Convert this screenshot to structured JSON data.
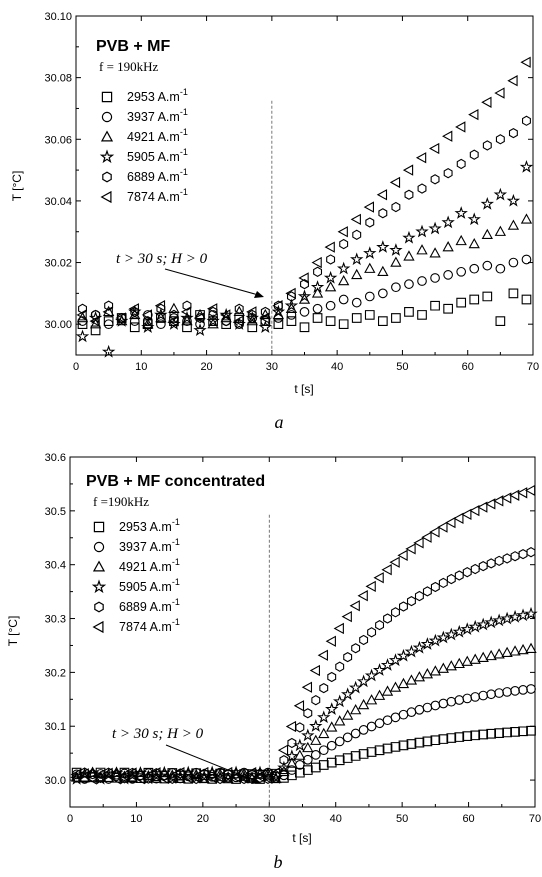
{
  "chart_data": [
    {
      "type": "scatter",
      "panel": "a",
      "title": "PVB + MF",
      "frequency": "f = 190kHz",
      "xlabel": "t [s]",
      "ylabel": "T [°C]",
      "xlim": [
        0,
        70
      ],
      "ylim": [
        29.99,
        30.1
      ],
      "xticks": [
        0,
        10,
        20,
        30,
        40,
        50,
        60,
        70
      ],
      "yticks": [
        30.0,
        30.02,
        30.04,
        30.06,
        30.08,
        30.1
      ],
      "ytick_labels": [
        "30.00",
        "30.02",
        "30.04",
        "30.06",
        "30.08",
        "30.10"
      ],
      "grid": false,
      "legend_position": "top-left",
      "marker_line": 30,
      "annotation": "t > 30 s; H > 0",
      "caption": "a",
      "series": [
        {
          "name": "2953 A.m",
          "marker": "square",
          "x": [
            1,
            3,
            5,
            7,
            9,
            11,
            13,
            15,
            17,
            19,
            21,
            23,
            25,
            27,
            29,
            31,
            33,
            35,
            37,
            39,
            41,
            43,
            45,
            47,
            49,
            51,
            53,
            55,
            57,
            59,
            61,
            63,
            65,
            67,
            69
          ],
          "y": [
            30.0,
            29.998,
            30.001,
            30.002,
            29.999,
            30.0,
            30.002,
            30.001,
            29.999,
            30.003,
            30.001,
            30.0,
            30.002,
            29.999,
            30.001,
            30.0,
            30.001,
            29.999,
            30.002,
            30.001,
            30.0,
            30.002,
            30.003,
            30.001,
            30.002,
            30.004,
            30.003,
            30.006,
            30.005,
            30.007,
            30.008,
            30.009,
            30.001,
            30.01,
            30.008
          ]
        },
        {
          "name": "3937 A.m",
          "marker": "circle",
          "x": [
            1,
            3,
            5,
            7,
            9,
            11,
            13,
            15,
            17,
            19,
            21,
            23,
            25,
            27,
            29,
            31,
            33,
            35,
            37,
            39,
            41,
            43,
            45,
            47,
            49,
            51,
            53,
            55,
            57,
            59,
            61,
            63,
            65,
            67,
            69
          ],
          "y": [
            30.001,
            30.003,
            30.0,
            30.002,
            30.001,
            30.003,
            30.0,
            30.002,
            30.001,
            30.0,
            30.003,
            30.001,
            30.0,
            30.002,
            30.001,
            30.002,
            30.003,
            30.004,
            30.005,
            30.006,
            30.008,
            30.007,
            30.009,
            30.01,
            30.012,
            30.013,
            30.014,
            30.015,
            30.016,
            30.017,
            30.018,
            30.019,
            30.018,
            30.02,
            30.021
          ]
        },
        {
          "name": "4921 A.m",
          "marker": "triangle-up",
          "x": [
            1,
            3,
            5,
            7,
            9,
            11,
            13,
            15,
            17,
            19,
            21,
            23,
            25,
            27,
            29,
            31,
            33,
            35,
            37,
            39,
            41,
            43,
            45,
            47,
            49,
            51,
            53,
            55,
            57,
            59,
            61,
            63,
            65,
            67,
            69
          ],
          "y": [
            30.002,
            30.0,
            30.004,
            30.001,
            30.003,
            30.0,
            30.002,
            30.005,
            30.001,
            30.003,
            30.0,
            30.002,
            30.004,
            30.001,
            30.003,
            30.003,
            30.005,
            30.008,
            30.01,
            30.012,
            30.014,
            30.016,
            30.018,
            30.017,
            30.02,
            30.022,
            30.024,
            30.023,
            30.025,
            30.027,
            30.026,
            30.029,
            30.03,
            30.032,
            30.034
          ]
        },
        {
          "name": "5905 A.m",
          "marker": "star",
          "x": [
            1,
            3,
            5,
            7,
            9,
            11,
            13,
            15,
            17,
            19,
            21,
            23,
            25,
            27,
            29,
            31,
            33,
            35,
            37,
            39,
            41,
            43,
            45,
            47,
            49,
            51,
            53,
            55,
            57,
            59,
            61,
            63,
            65,
            67,
            69
          ],
          "y": [
            29.996,
            30.002,
            29.991,
            30.001,
            30.004,
            29.999,
            30.003,
            30.0,
            30.002,
            29.998,
            30.001,
            30.003,
            30.0,
            30.002,
            29.999,
            30.004,
            30.006,
            30.009,
            30.012,
            30.015,
            30.018,
            30.021,
            30.023,
            30.025,
            30.024,
            30.028,
            30.03,
            30.031,
            30.033,
            30.036,
            30.034,
            30.039,
            30.042,
            30.04,
            30.051
          ]
        },
        {
          "name": "6889 A.m",
          "marker": "hexagon",
          "x": [
            1,
            3,
            5,
            7,
            9,
            11,
            13,
            15,
            17,
            19,
            21,
            23,
            25,
            27,
            29,
            31,
            33,
            35,
            37,
            39,
            41,
            43,
            45,
            47,
            49,
            51,
            53,
            55,
            57,
            59,
            61,
            63,
            65,
            67,
            69
          ],
          "y": [
            30.005,
            30.003,
            30.006,
            30.002,
            30.004,
            30.001,
            30.005,
            30.003,
            30.006,
            30.002,
            30.004,
            30.001,
            30.005,
            30.003,
            30.004,
            30.006,
            30.009,
            30.013,
            30.017,
            30.021,
            30.026,
            30.029,
            30.033,
            30.036,
            30.038,
            30.042,
            30.044,
            30.047,
            30.049,
            30.052,
            30.055,
            30.058,
            30.06,
            30.062,
            30.066
          ]
        },
        {
          "name": "7874 A.m",
          "marker": "triangle-left",
          "x": [
            1,
            3,
            5,
            7,
            9,
            11,
            13,
            15,
            17,
            19,
            21,
            23,
            25,
            27,
            29,
            31,
            33,
            35,
            37,
            39,
            41,
            43,
            45,
            47,
            49,
            51,
            53,
            55,
            57,
            59,
            61,
            63,
            65,
            67,
            69
          ],
          "y": [
            30.003,
            30.001,
            30.004,
            30.002,
            30.005,
            30.003,
            30.006,
            30.001,
            30.004,
            30.002,
            30.005,
            30.003,
            30.001,
            30.004,
            30.002,
            30.006,
            30.01,
            30.015,
            30.02,
            30.025,
            30.03,
            30.034,
            30.038,
            30.042,
            30.046,
            30.05,
            30.054,
            30.057,
            30.061,
            30.064,
            30.068,
            30.072,
            30.075,
            30.079,
            30.085
          ]
        }
      ]
    },
    {
      "type": "scatter",
      "panel": "b",
      "title": "PVB + MF concentrated",
      "frequency": "f =190kHz",
      "xlabel": "t [s]",
      "ylabel": "T [°C]",
      "xlim": [
        0,
        70
      ],
      "ylim": [
        29.95,
        30.6
      ],
      "xticks": [
        0,
        10,
        20,
        30,
        40,
        50,
        60,
        70
      ],
      "yticks": [
        30.0,
        30.1,
        30.2,
        30.3,
        30.4,
        30.5,
        30.6
      ],
      "ytick_labels": [
        "30.0",
        "30.1",
        "30.2",
        "30.3",
        "30.4",
        "30.5",
        "30.6"
      ],
      "grid": false,
      "legend_position": "top-left",
      "marker_line": 30,
      "annotation": "t > 30 s; H > 0",
      "caption": "b",
      "series": [
        {
          "name": "2953 A.m",
          "marker": "square",
          "baseline": 30.0,
          "amplitude": 0.092,
          "shape": 1.15
        },
        {
          "name": "3937 A.m",
          "marker": "circle",
          "baseline": 30.0,
          "amplitude": 0.17,
          "shape": 1.1
        },
        {
          "name": "4921 A.m",
          "marker": "triangle-up",
          "baseline": 30.0,
          "amplitude": 0.245,
          "shape": 1.05
        },
        {
          "name": "5905 A.m",
          "marker": "star",
          "baseline": 30.0,
          "amplitude": 0.31,
          "shape": 1.0
        },
        {
          "name": "6889 A.m",
          "marker": "hexagon",
          "baseline": 30.0,
          "amplitude": 0.425,
          "shape": 0.95
        },
        {
          "name": "7874 A.m",
          "marker": "triangle-left",
          "baseline": 30.0,
          "amplitude": 0.54,
          "shape": 0.9
        }
      ]
    }
  ],
  "unit_superscript": "-1"
}
